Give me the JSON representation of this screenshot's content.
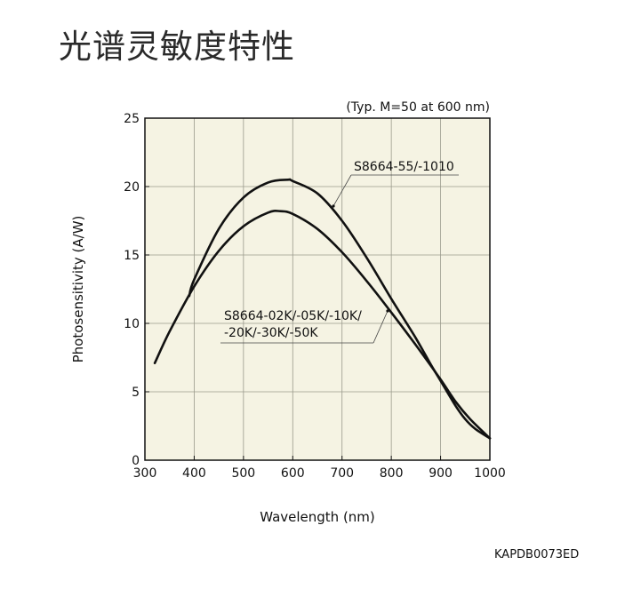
{
  "title": "光谱灵敏度特性",
  "figure_code": "KAPDB0073ED",
  "chart_data": {
    "type": "line",
    "condition_note": "(Typ. M=50 at 600 nm)",
    "xlabel": "Wavelength (nm)",
    "ylabel": "Photosensitivity (A/W)",
    "xlim": [
      300,
      1000
    ],
    "ylim": [
      0,
      25
    ],
    "x_ticks": [
      "300",
      "400",
      "500",
      "600",
      "700",
      "800",
      "900",
      "1000"
    ],
    "y_ticks": [
      "0",
      "5",
      "10",
      "15",
      "20",
      "25"
    ],
    "grid": true,
    "plot_background": "#f5f3e3",
    "line_color": "#111111",
    "series": [
      {
        "labels": [
          "S8664-55/-1010"
        ],
        "points": [
          [
            390,
            12.0
          ],
          [
            400,
            13.2
          ],
          [
            450,
            16.9
          ],
          [
            500,
            19.2
          ],
          [
            550,
            20.3
          ],
          [
            590,
            20.5
          ],
          [
            600,
            20.4
          ],
          [
            650,
            19.5
          ],
          [
            700,
            17.5
          ],
          [
            750,
            14.8
          ],
          [
            800,
            11.8
          ],
          [
            850,
            8.9
          ],
          [
            880,
            7.0
          ],
          [
            900,
            5.8
          ],
          [
            930,
            4.0
          ],
          [
            950,
            3.0
          ],
          [
            970,
            2.3
          ],
          [
            1000,
            1.6
          ]
        ]
      },
      {
        "labels": [
          "S8664-02K/-05K/-10K/",
          "-20K/-30K/-50K"
        ],
        "points": [
          [
            320,
            7.1
          ],
          [
            350,
            9.4
          ],
          [
            400,
            12.7
          ],
          [
            450,
            15.3
          ],
          [
            500,
            17.1
          ],
          [
            550,
            18.1
          ],
          [
            575,
            18.2
          ],
          [
            600,
            18.0
          ],
          [
            650,
            16.9
          ],
          [
            700,
            15.2
          ],
          [
            750,
            13.1
          ],
          [
            800,
            10.8
          ],
          [
            850,
            8.4
          ],
          [
            900,
            5.9
          ],
          [
            930,
            4.3
          ],
          [
            960,
            3.0
          ],
          [
            1000,
            1.6
          ]
        ]
      }
    ]
  }
}
